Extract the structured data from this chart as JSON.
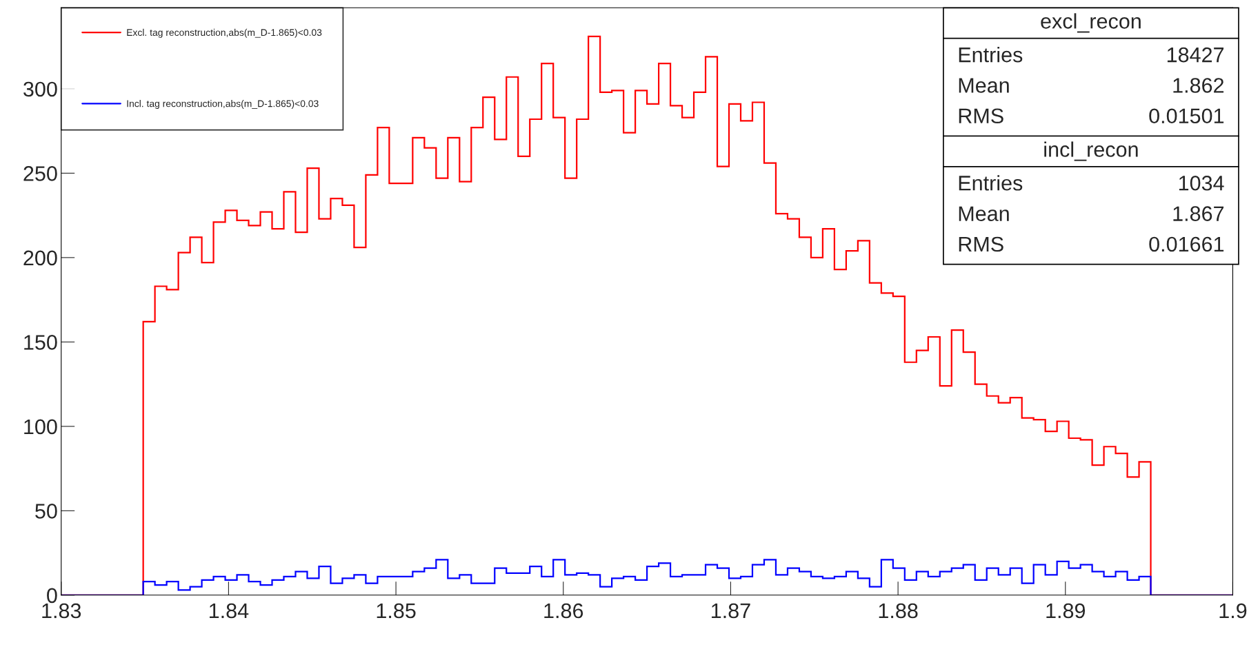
{
  "chart_data": {
    "type": "histogram",
    "bins": [
      1.83,
      1.8307,
      1.8314,
      1.8321,
      1.8328,
      1.8335,
      1.8342,
      1.8349,
      1.8356,
      1.8363,
      1.837,
      1.8377,
      1.8384,
      1.8391,
      1.8398,
      1.8405,
      1.8412,
      1.8419,
      1.8426,
      1.8433,
      1.844,
      1.8447,
      1.8454,
      1.8461,
      1.8468,
      1.8475,
      1.8482,
      1.8489,
      1.8496,
      1.8503,
      1.851,
      1.8517,
      1.8524,
      1.8531,
      1.8538,
      1.8545,
      1.8552,
      1.8559,
      1.8566,
      1.8573,
      1.858,
      1.8587,
      1.8594,
      1.8601,
      1.8608,
      1.8615,
      1.8622,
      1.8629,
      1.8636,
      1.8643,
      1.865,
      1.8657,
      1.8664,
      1.8671,
      1.8678,
      1.8685,
      1.8692,
      1.8699,
      1.8706,
      1.8713,
      1.872,
      1.8727,
      1.8734,
      1.8741,
      1.8748,
      1.8755,
      1.8762,
      1.8769,
      1.8776,
      1.8783,
      1.879,
      1.8797,
      1.8804,
      1.8811,
      1.8818,
      1.8825,
      1.8832,
      1.8839,
      1.8846,
      1.8853,
      1.886,
      1.8867,
      1.8874,
      1.8881,
      1.8888,
      1.8895,
      1.8902,
      1.8909,
      1.8916,
      1.8923,
      1.893,
      1.8937,
      1.8944,
      1.8951,
      1.8958,
      1.8965,
      1.8972,
      1.8979,
      1.8986,
      1.8993,
      1.9
    ],
    "series": [
      {
        "name": "Excl. tag reconstruction,abs(m_D-1.865)<0.03",
        "color": "#ff0000",
        "values": [
          0,
          0,
          0,
          0,
          0,
          0,
          0,
          162,
          183,
          181,
          203,
          212,
          197,
          221,
          228,
          222,
          219,
          227,
          217,
          239,
          215,
          253,
          223,
          235,
          231,
          206,
          249,
          277,
          244,
          244,
          271,
          265,
          247,
          271,
          245,
          277,
          295,
          270,
          307,
          260,
          282,
          315,
          283,
          247,
          282,
          331,
          298,
          299,
          274,
          299,
          291,
          315,
          290,
          283,
          298,
          319,
          254,
          291,
          281,
          292,
          256,
          226,
          223,
          212,
          200,
          217,
          193,
          204,
          210,
          185,
          179,
          177,
          138,
          145,
          153,
          124,
          157,
          144,
          125,
          118,
          114,
          117,
          105,
          104,
          97,
          103,
          93,
          92,
          77,
          88,
          84,
          70,
          79,
          0,
          0,
          0,
          0,
          0,
          0,
          0
        ]
      },
      {
        "name": "Incl. tag reconstruction,abs(m_D-1.865)<0.03",
        "color": "#0000ff",
        "values": [
          0,
          0,
          0,
          0,
          0,
          0,
          0,
          8,
          6,
          8,
          3,
          5,
          9,
          11,
          9,
          12,
          8,
          6,
          9,
          11,
          14,
          10,
          17,
          7,
          10,
          12,
          7,
          11,
          11,
          11,
          14,
          16,
          21,
          10,
          12,
          7,
          7,
          16,
          13,
          13,
          17,
          11,
          21,
          12,
          13,
          12,
          5,
          10,
          11,
          9,
          17,
          19,
          11,
          12,
          12,
          18,
          16,
          10,
          11,
          18,
          21,
          12,
          16,
          14,
          11,
          10,
          11,
          14,
          10,
          5,
          21,
          16,
          9,
          14,
          11,
          14,
          16,
          18,
          9,
          16,
          12,
          16,
          7,
          18,
          12,
          20,
          16,
          18,
          14,
          11,
          14,
          9,
          11,
          0,
          0,
          0,
          0,
          0,
          0,
          0
        ]
      }
    ],
    "xlim": [
      1.83,
      1.9
    ],
    "xticks": [
      1.83,
      1.84,
      1.85,
      1.86,
      1.87,
      1.88,
      1.89,
      1.9
    ],
    "ylim": [
      0,
      348
    ],
    "yticks": [
      0,
      50,
      100,
      150,
      200,
      250,
      300
    ],
    "legend": "top left",
    "grid": false,
    "annotations": [
      "excl_recon",
      "Entries",
      "18427",
      "Mean",
      "1.862",
      "RMS",
      "0.01501",
      "incl_recon",
      "Entries",
      "1034",
      "Mean",
      "1.867",
      "RMS",
      "0.01661"
    ]
  }
}
